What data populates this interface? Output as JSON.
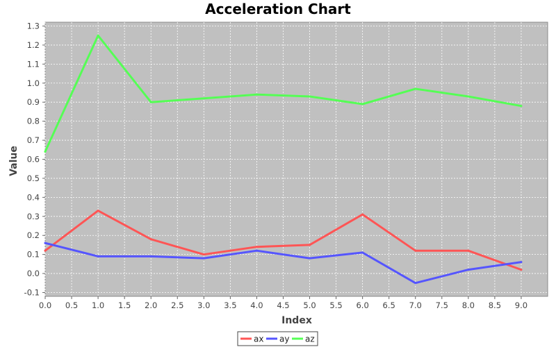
{
  "chart_data": {
    "type": "line",
    "title": "Acceleration Chart",
    "xlabel": "Index",
    "ylabel": "Value",
    "xlim": [
      0,
      9.5
    ],
    "ylim": [
      -0.12,
      1.32
    ],
    "xticks": [
      "0.0",
      "0.5",
      "1.0",
      "1.5",
      "2.0",
      "2.5",
      "3.0",
      "3.5",
      "4.0",
      "4.5",
      "5.0",
      "5.5",
      "6.0",
      "6.5",
      "7.0",
      "7.5",
      "8.0",
      "8.5",
      "9.0"
    ],
    "yticks": [
      "-0.1",
      "0.0",
      "0.1",
      "0.2",
      "0.3",
      "0.4",
      "0.5",
      "0.6",
      "0.7",
      "0.8",
      "0.9",
      "1.0",
      "1.1",
      "1.2",
      "1.3"
    ],
    "grid": true,
    "legend_position": "bottom-center",
    "plot_background": "#c0c0c0",
    "x": [
      0,
      1,
      2,
      3,
      4,
      5,
      6,
      7,
      8,
      9
    ],
    "series": [
      {
        "name": "ax",
        "color": "#ff5555",
        "values": [
          0.12,
          0.33,
          0.18,
          0.1,
          0.14,
          0.15,
          0.31,
          0.12,
          0.12,
          0.02
        ]
      },
      {
        "name": "ay",
        "color": "#5555ff",
        "values": [
          0.16,
          0.09,
          0.09,
          0.08,
          0.12,
          0.08,
          0.11,
          -0.05,
          0.02,
          0.06
        ]
      },
      {
        "name": "az",
        "color": "#55ff55",
        "values": [
          0.64,
          1.25,
          0.9,
          0.92,
          0.94,
          0.93,
          0.89,
          0.97,
          0.93,
          0.88
        ]
      }
    ]
  }
}
